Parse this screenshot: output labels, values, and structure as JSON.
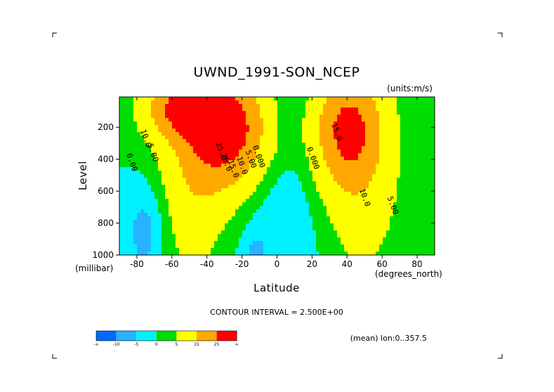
{
  "chart_data": {
    "type": "heatmap",
    "subtype": "filled-contour",
    "title": "UWND_1991-SON_NCEP",
    "units": "(units:m/s)",
    "xlabel": "Latitude",
    "x_units": "(degrees_north)",
    "ylabel": "Level",
    "y_units": "(millibar)",
    "xlim": [
      -90,
      90
    ],
    "ylim": [
      1000,
      10
    ],
    "x_ticks": [
      -80,
      -60,
      -40,
      -20,
      0,
      20,
      40,
      60,
      80
    ],
    "y_ticks": [
      200,
      400,
      600,
      800,
      1000
    ],
    "contour_interval": "CONTOUR INTERVAL = 2.500E+00",
    "footer": "(mean) lon:0..357.5",
    "colorbar": {
      "labels": [
        "-∞",
        "-10",
        "-5",
        "0",
        "5",
        "15",
        "25",
        "∞"
      ],
      "colors": [
        "#0068ff",
        "#27b3ff",
        "#00f1ff",
        "#00dd00",
        "#ffff00",
        "#ffa900",
        "#ff0000"
      ]
    },
    "jets": [
      {
        "lat": -28,
        "level": 200,
        "max": 32
      },
      {
        "lat": 40,
        "level": 200,
        "max": 26
      }
    ],
    "contour_labels": [
      {
        "text": "10.0",
        "lat": -78,
        "level": 220
      },
      {
        "text": "5.00",
        "lat": -74,
        "level": 310
      },
      {
        "text": "0.00",
        "lat": -86,
        "level": 370
      },
      {
        "text": "25.0",
        "lat": -35,
        "level": 300
      },
      {
        "text": "20.0",
        "lat": -32,
        "level": 370
      },
      {
        "text": "15.0",
        "lat": -28,
        "level": 410
      },
      {
        "text": "10.0",
        "lat": -23,
        "level": 390
      },
      {
        "text": "5.00",
        "lat": -18,
        "level": 350
      },
      {
        "text": "0.000",
        "lat": -14,
        "level": 320
      },
      {
        "text": "0.000",
        "lat": 17,
        "level": 330
      },
      {
        "text": "15.0",
        "lat": 31,
        "level": 180
      },
      {
        "text": "10.0",
        "lat": 47,
        "level": 590
      },
      {
        "text": "5.00",
        "lat": 63,
        "level": 640
      }
    ]
  }
}
